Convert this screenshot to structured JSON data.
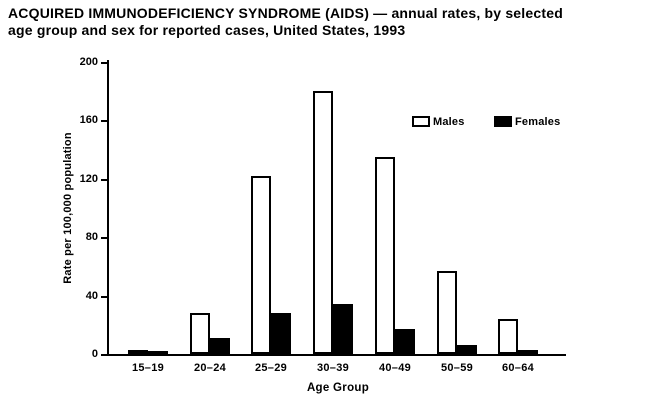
{
  "title_line1": "ACQUIRED IMMUNODEFICIENCY SYNDROME (AIDS) — annual rates, by selected",
  "title_line2": "age group and sex for reported cases, United States, 1993",
  "chart_data": {
    "type": "bar",
    "title": "ACQUIRED IMMUNODEFICIENCY SYNDROME (AIDS) — annual rates, by selected age group and sex for reported cases, United States, 1993",
    "categories": [
      "15–19",
      "20–24",
      "25–29",
      "30–39",
      "40–49",
      "50–59",
      "60–64"
    ],
    "series": [
      {
        "name": "Males",
        "color": "#ffffff",
        "values": [
          3,
          28,
          122,
          180,
          135,
          57,
          24
        ]
      },
      {
        "name": "Females",
        "color": "#000000",
        "values": [
          2,
          11,
          28,
          34,
          17,
          6,
          3
        ]
      }
    ],
    "xlabel": "Age Group",
    "ylabel": "Rate per 100,000 population",
    "ylim": [
      0,
      200
    ],
    "yticks": [
      0,
      40,
      80,
      120,
      160,
      200
    ],
    "grid": false,
    "legend_position": "upper-right-inside",
    "bar_outline_color": "#000000",
    "background_color": "#ffffff"
  }
}
